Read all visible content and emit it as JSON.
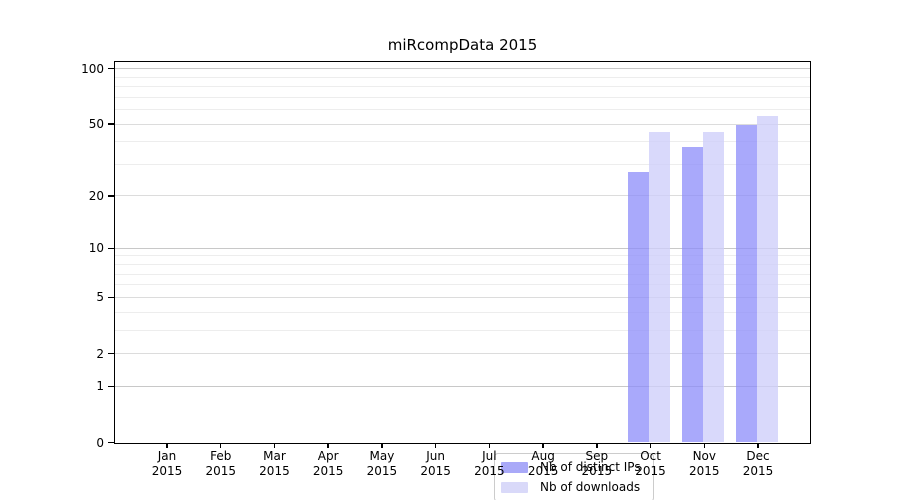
{
  "title": "miRcompData 2015",
  "chart_data": {
    "type": "bar",
    "title": "miRcompData 2015",
    "xlabel": "",
    "ylabel": "",
    "yscale": "log1p",
    "ylim": [
      0,
      110
    ],
    "grid": true,
    "legend_position": "bottom-center",
    "x_tick_year": "2015",
    "x_tick_months": [
      "Jan",
      "Feb",
      "Mar",
      "Apr",
      "May",
      "Jun",
      "Jul",
      "Aug",
      "Sep",
      "Oct",
      "Nov",
      "Dec"
    ],
    "categories": [
      "Jan 2015",
      "Feb 2015",
      "Mar 2015",
      "Apr 2015",
      "May 2015",
      "Jun 2015",
      "Jul 2015",
      "Aug 2015",
      "Sep 2015",
      "Oct 2015",
      "Nov 2015",
      "Dec 2015"
    ],
    "series": [
      {
        "name": "Nb of distinct IPs",
        "legend_color": "#a9a9f8",
        "bar_fill": "rgba(140,140,250,0.75)",
        "values": [
          0,
          0,
          0,
          0,
          0,
          0,
          0,
          0,
          0,
          27,
          37,
          49
        ]
      },
      {
        "name": "Nb of downloads",
        "legend_color": "#d9d9f9",
        "bar_fill": "rgba(206,206,250,0.78)",
        "values": [
          0,
          0,
          0,
          0,
          0,
          0,
          0,
          0,
          0,
          45,
          45,
          55
        ]
      }
    ],
    "y_tick_values": [
      0,
      1,
      2,
      5,
      10,
      20,
      50,
      100
    ],
    "y_tick_labels": [
      "0",
      "1",
      "2",
      "5",
      "10",
      "20",
      "50",
      "100"
    ],
    "gridlines": {
      "major_values": [
        1,
        10,
        100
      ],
      "mid_values": [
        2,
        5,
        20,
        50
      ],
      "minor_values": [
        3,
        4,
        6,
        7,
        8,
        9,
        30,
        40,
        60,
        70,
        80,
        90
      ],
      "major_color": "#c8c8c8",
      "mid_color": "#dcdcdc",
      "minor_color": "#ededed"
    }
  }
}
